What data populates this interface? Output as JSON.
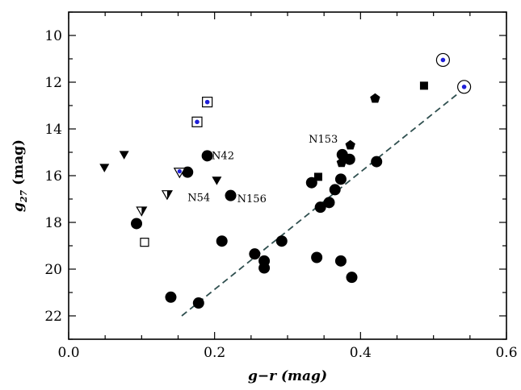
{
  "chart_data": {
    "type": "scatter",
    "title": "",
    "xlabel": "g−r (mag)",
    "ylabel_main": "g",
    "ylabel_sub": "27",
    "ylabel_unit": " (mag)",
    "xlim": [
      0.0,
      0.6
    ],
    "ylim": [
      23,
      9
    ],
    "y_inverted": true,
    "grid": false,
    "x_ticks": [
      {
        "value": 0.0,
        "label": "0.0"
      },
      {
        "value": 0.2,
        "label": "0.2"
      },
      {
        "value": 0.4,
        "label": "0.4"
      },
      {
        "value": 0.6,
        "label": "0.6"
      }
    ],
    "y_ticks": [
      {
        "value": 10,
        "label": "10"
      },
      {
        "value": 12,
        "label": "12"
      },
      {
        "value": 14,
        "label": "14"
      },
      {
        "value": 16,
        "label": "16"
      },
      {
        "value": 18,
        "label": "18"
      },
      {
        "value": 20,
        "label": "20"
      },
      {
        "value": 22,
        "label": "22"
      }
    ],
    "series": [
      {
        "marker": "circle_filled",
        "points": [
          [
            0.093,
            18.05
          ],
          [
            0.14,
            21.2
          ],
          [
            0.163,
            15.85
          ],
          [
            0.178,
            21.45
          ],
          [
            0.19,
            15.15
          ],
          [
            0.21,
            18.8
          ],
          [
            0.222,
            16.85
          ],
          [
            0.255,
            19.35
          ],
          [
            0.268,
            19.65
          ],
          [
            0.268,
            19.95
          ],
          [
            0.292,
            18.8
          ],
          [
            0.333,
            16.3
          ],
          [
            0.34,
            19.5
          ],
          [
            0.345,
            17.35
          ],
          [
            0.357,
            17.15
          ],
          [
            0.365,
            16.6
          ],
          [
            0.373,
            16.15
          ],
          [
            0.373,
            19.65
          ],
          [
            0.375,
            15.1
          ],
          [
            0.385,
            15.3
          ],
          [
            0.388,
            20.35
          ],
          [
            0.422,
            15.4
          ]
        ]
      },
      {
        "marker": "square_filled",
        "points": [
          [
            0.342,
            16.05
          ],
          [
            0.487,
            12.15
          ]
        ]
      },
      {
        "marker": "square_open",
        "points": [
          [
            0.104,
            18.85
          ]
        ]
      },
      {
        "marker": "square_open_dot",
        "points": [
          [
            0.176,
            13.7
          ],
          [
            0.19,
            12.85
          ]
        ]
      },
      {
        "marker": "triangle_down_filled",
        "points": [
          [
            0.049,
            15.65
          ],
          [
            0.076,
            15.1
          ],
          [
            0.203,
            16.2
          ]
        ]
      },
      {
        "marker": "triangle_down_half",
        "points": [
          [
            0.1,
            17.5
          ],
          [
            0.135,
            16.8
          ]
        ]
      },
      {
        "marker": "triangle_down_open_dot",
        "points": [
          [
            0.152,
            15.85
          ]
        ]
      },
      {
        "marker": "pentagon_filled",
        "points": [
          [
            0.374,
            15.45
          ],
          [
            0.386,
            14.7
          ],
          [
            0.42,
            12.7
          ]
        ]
      },
      {
        "marker": "circle_open_dot",
        "points": [
          [
            0.513,
            11.05
          ],
          [
            0.542,
            12.2
          ]
        ]
      }
    ],
    "fit_line": {
      "style": "dashed",
      "color": "#2f4f4f",
      "points": [
        [
          0.155,
          22.0
        ],
        [
          0.545,
          12.2
        ]
      ]
    },
    "annotations": [
      {
        "text": "N42",
        "x": 0.196,
        "y": 15.15,
        "anchor": "start"
      },
      {
        "text": "N54",
        "x": 0.163,
        "y": 16.95,
        "anchor": "start"
      },
      {
        "text": "N156",
        "x": 0.231,
        "y": 17.0,
        "anchor": "start"
      },
      {
        "text": "N153",
        "x": 0.369,
        "y": 14.45,
        "anchor": "end"
      }
    ],
    "colors": {
      "marker": "#000000",
      "dot": "#1f1fd8",
      "fit_line": "#2f4f4f"
    }
  }
}
